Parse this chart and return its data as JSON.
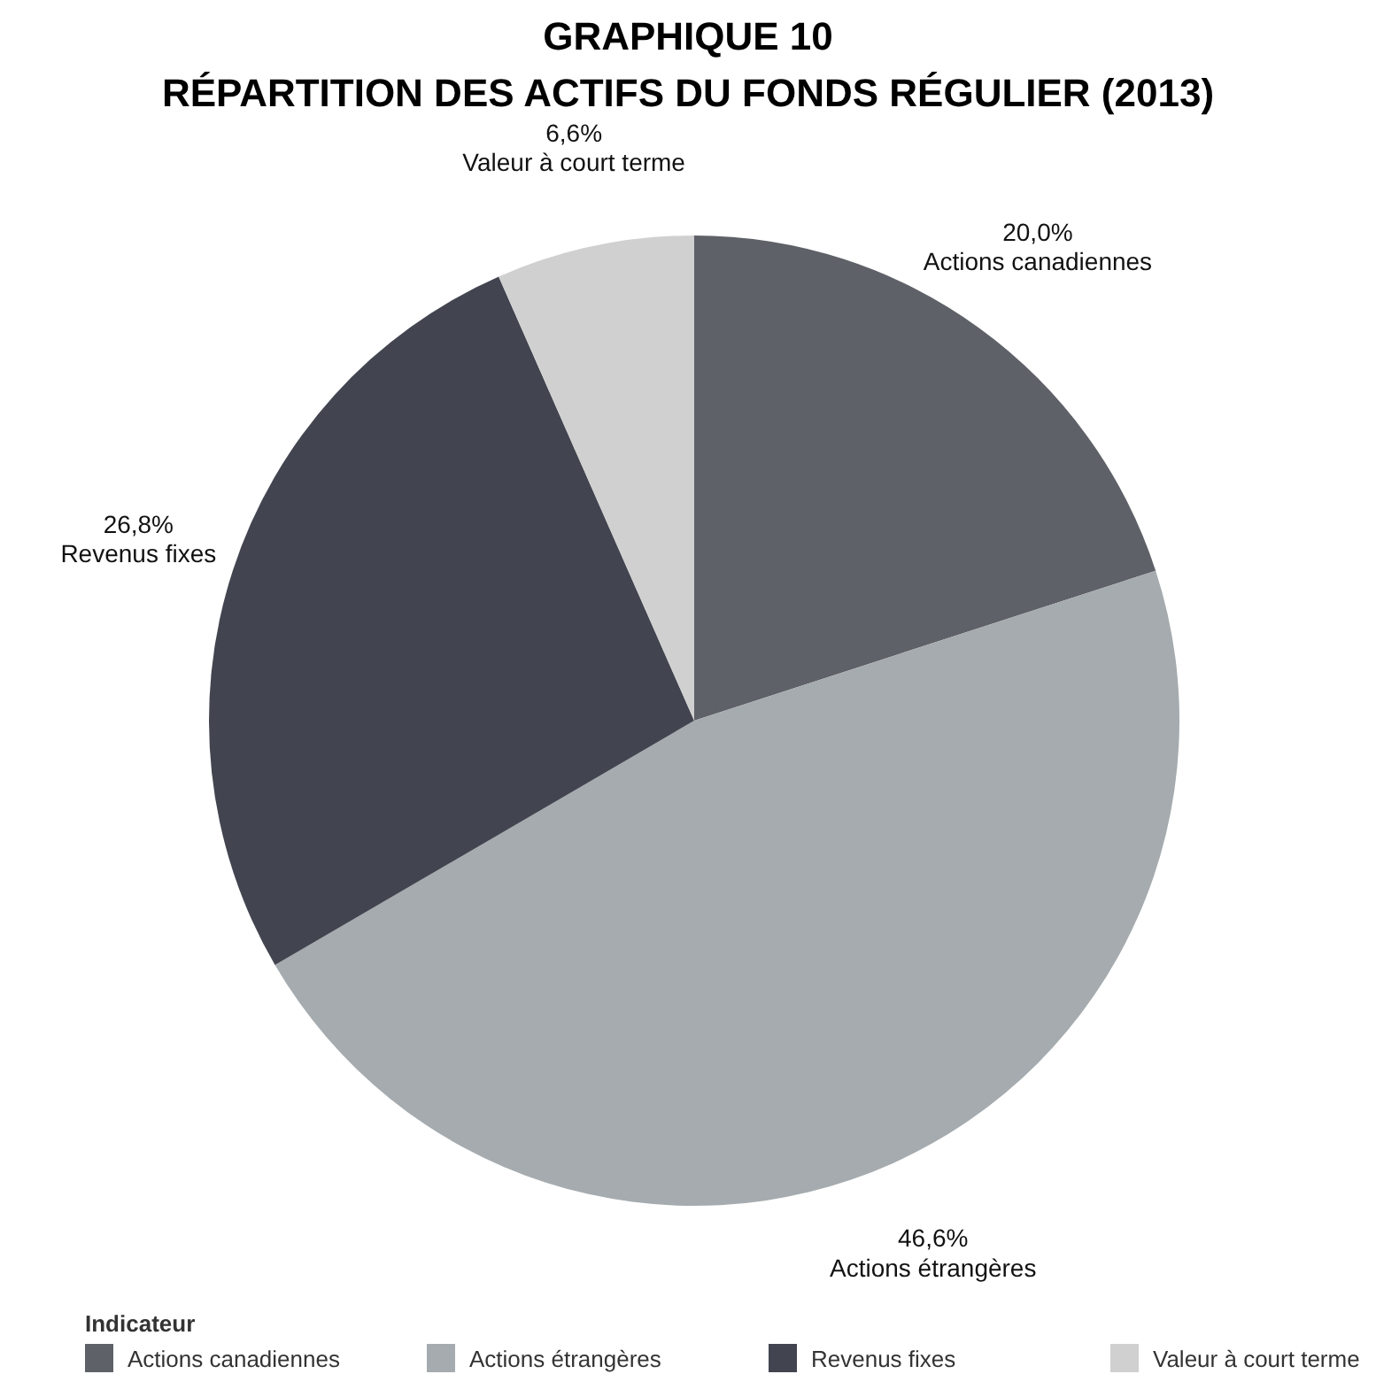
{
  "chart_data": {
    "type": "pie",
    "title": "GRAPHIQUE 10",
    "subtitle": "RÉPARTITION DES ACTIFS DU FONDS RÉGULIER (2013)",
    "categories": [
      "Actions canadiennes",
      "Actions étrangères",
      "Revenus fixes",
      "Valeur à court terme"
    ],
    "values": [
      20.0,
      46.6,
      26.8,
      6.6
    ],
    "colors": [
      "#5f6168",
      "#a5abae",
      "#424550",
      "#d0d0d0"
    ],
    "value_labels": [
      "20,0%",
      "46,6%",
      "26,8%",
      "6,6%"
    ],
    "legend": "bottom",
    "legend_title": "Indicateur"
  }
}
